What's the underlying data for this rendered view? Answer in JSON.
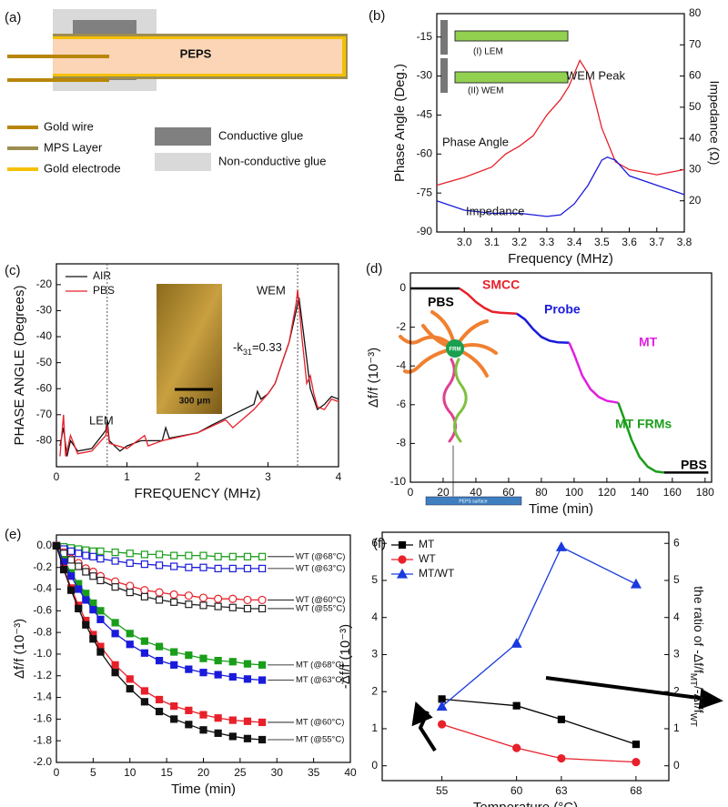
{
  "diagram": {
    "panel_label": "(a)",
    "center_label": "PEPS",
    "legend": [
      "Gold wire",
      "MPS Layer",
      "Gold electrode",
      "Conductive glue",
      "Non-conductive glue"
    ]
  },
  "chart_data": [
    {
      "type": "line",
      "panel_label": "(b)",
      "xlabel": "Frequency (MHz)",
      "ylabel": "Phase Angle (Deg.)",
      "y2label": "Impedance (Ω)",
      "xlim": [
        2.9,
        3.8
      ],
      "xticks": [
        {
          "value": 3,
          "label": "3.0"
        },
        3.1,
        3.2,
        3.3,
        3.4,
        3.5,
        3.6,
        3.7,
        3.8
      ],
      "ylim": [
        -90,
        -6
      ],
      "yticks": [
        -90,
        -75,
        -60,
        -45,
        -30,
        -15
      ],
      "y2lim": [
        10,
        80
      ],
      "y2ticks": [
        20,
        30,
        40,
        50,
        60,
        70,
        80
      ],
      "direct_labels": true,
      "annotations": [
        "WEM Peak",
        "(I) LEM",
        "(II) WEM"
      ],
      "series": [
        {
          "name": "Phase Angle",
          "color": "#e8202a",
          "x": [
            2.9,
            3.0,
            3.1,
            3.15,
            3.2,
            3.25,
            3.3,
            3.35,
            3.38,
            3.42,
            3.45,
            3.5,
            3.55,
            3.6,
            3.7,
            3.8
          ],
          "values": [
            -72,
            -69,
            -65,
            -60,
            -57,
            -53,
            -45,
            -39,
            -34,
            -24,
            -29,
            -50,
            -63,
            -66,
            -68,
            -66
          ]
        },
        {
          "name": "Impedance",
          "color": "#1a1adb",
          "axis": "y2",
          "x": [
            2.9,
            3.0,
            3.1,
            3.2,
            3.3,
            3.35,
            3.4,
            3.45,
            3.5,
            3.52,
            3.55,
            3.6,
            3.7,
            3.8
          ],
          "values": [
            20,
            17,
            16,
            16,
            15,
            15.5,
            19,
            25,
            33,
            34,
            33,
            28,
            25,
            22
          ]
        }
      ]
    },
    {
      "type": "line",
      "panel_label": "(c)",
      "xlabel": "FREQUENCY (MHz)",
      "ylabel": "PHASE ANGLE (Degrees)",
      "xlim": [
        0,
        4
      ],
      "xticks": [
        0,
        1,
        2,
        3,
        4
      ],
      "ylim": [
        -90,
        -12
      ],
      "yticks": [
        -80,
        -70,
        -60,
        -50,
        -40,
        -30,
        -20
      ],
      "legend": "upper left",
      "vlines": [
        0.72,
        3.42
      ],
      "annotations": [
        "WEM",
        "LEM",
        [
          "-k",
          "31",
          "=0.33"
        ],
        "300 μm"
      ],
      "series": [
        {
          "name": "AIR",
          "color": "#111111",
          "x": [
            0.05,
            0.1,
            0.15,
            0.2,
            0.3,
            0.5,
            0.7,
            0.72,
            0.75,
            0.9,
            1.0,
            1.2,
            1.5,
            1.55,
            1.6,
            2.0,
            2.2,
            2.5,
            2.8,
            2.85,
            2.9,
            3.0,
            3.1,
            3.2,
            3.3,
            3.4,
            3.44,
            3.5,
            3.6,
            3.7,
            3.8,
            3.9,
            4.0
          ],
          "values": [
            -82,
            -75,
            -86,
            -80,
            -84,
            -83,
            -76,
            -72,
            -80,
            -84,
            -82,
            -80,
            -80,
            -75,
            -79,
            -77,
            -74,
            -70,
            -66,
            -61,
            -64,
            -62,
            -58,
            -50,
            -42,
            -30,
            -25,
            -38,
            -60,
            -68,
            -66,
            -63,
            -64
          ]
        },
        {
          "name": "PBS",
          "color": "#e8202a",
          "x": [
            0.05,
            0.1,
            0.13,
            0.2,
            0.3,
            0.5,
            0.7,
            0.72,
            0.75,
            1.0,
            1.25,
            1.3,
            1.5,
            2.0,
            2.4,
            2.5,
            2.8,
            3.0,
            3.1,
            3.2,
            3.3,
            3.4,
            3.42,
            3.48,
            3.55,
            3.6,
            3.65,
            3.7,
            3.8,
            3.9,
            4.0
          ],
          "values": [
            -86,
            -70,
            -86,
            -78,
            -85,
            -84,
            -78,
            -74,
            -81,
            -83,
            -78,
            -82,
            -80,
            -77,
            -72,
            -75,
            -68,
            -62,
            -58,
            -50,
            -42,
            -27,
            -22,
            -40,
            -58,
            -55,
            -62,
            -67,
            -68,
            -64,
            -65
          ]
        }
      ]
    },
    {
      "type": "line",
      "panel_label": "(d)",
      "xlabel": "Time (min)",
      "ylabel": "Δf/f (10⁻³)",
      "xlim": [
        0,
        184
      ],
      "xticks": [
        0,
        20,
        40,
        60,
        80,
        100,
        120,
        140,
        160,
        180
      ],
      "ylim": [
        -10,
        0.8
      ],
      "yticks": [
        -10,
        -8,
        -6,
        -4,
        -2,
        0
      ],
      "direct_labels": true,
      "annotations": [
        "FRM",
        "PEPS surface"
      ],
      "series": [
        {
          "name": "PBS",
          "color": "#000000",
          "x": [
            0,
            30
          ],
          "values": [
            0,
            0
          ]
        },
        {
          "name": "SMCC",
          "color": "#e8202a",
          "x": [
            30,
            35,
            40,
            45,
            50,
            55,
            65
          ],
          "values": [
            0,
            -0.3,
            -0.7,
            -1.0,
            -1.2,
            -1.25,
            -1.3
          ]
        },
        {
          "name": "Probe",
          "color": "#1a1adb",
          "x": [
            65,
            70,
            75,
            80,
            85,
            90,
            97
          ],
          "values": [
            -1.3,
            -1.6,
            -2.1,
            -2.5,
            -2.7,
            -2.78,
            -2.8
          ]
        },
        {
          "name": "MT",
          "color": "#e020e0",
          "x": [
            97,
            100,
            105,
            110,
            115,
            120,
            127
          ],
          "values": [
            -2.8,
            -3.4,
            -4.5,
            -5.2,
            -5.6,
            -5.8,
            -5.9
          ]
        },
        {
          "name": "MT FRMs",
          "color": "#1a9e1a",
          "x": [
            127,
            130,
            135,
            140,
            145,
            150,
            155
          ],
          "values": [
            -5.9,
            -6.6,
            -7.8,
            -8.7,
            -9.2,
            -9.45,
            -9.5
          ]
        },
        {
          "name": "PBS",
          "color": "#000000",
          "x": [
            155,
            182
          ],
          "values": [
            -9.5,
            -9.5
          ]
        }
      ]
    },
    {
      "type": "line",
      "panel_label": "(e)",
      "xlabel": "Time (min)",
      "ylabel": "Δf/f (10⁻³)",
      "xlim": [
        0,
        40
      ],
      "xticks": [
        0,
        5,
        10,
        15,
        20,
        25,
        30,
        35,
        40
      ],
      "ylim": [
        -2.0,
        0.1
      ],
      "yticks": [
        {
          "value": -2,
          "label": "-2.0"
        },
        -1.8,
        -1.6,
        -1.4,
        -1.2,
        {
          "value": -1,
          "label": "-1.0"
        },
        -0.8,
        -0.6,
        -0.4,
        -0.2,
        {
          "value": 0,
          "label": "0.0"
        }
      ],
      "direct_labels": true,
      "x": [
        0,
        1,
        2,
        3,
        4,
        5,
        6,
        8,
        10,
        12,
        14,
        16,
        18,
        20,
        22,
        24,
        26,
        28
      ],
      "series": [
        {
          "name": "WT (@68°C)",
          "color": "#1a9e1a",
          "marker": "square",
          "open": true,
          "values": [
            0,
            -0.01,
            -0.02,
            -0.03,
            -0.04,
            -0.05,
            -0.05,
            -0.06,
            -0.07,
            -0.08,
            -0.08,
            -0.09,
            -0.09,
            -0.09,
            -0.1,
            -0.1,
            -0.1,
            -0.1
          ]
        },
        {
          "name": "WT (@63°C)",
          "color": "#1a1adb",
          "marker": "square",
          "open": true,
          "values": [
            0,
            -0.03,
            -0.05,
            -0.07,
            -0.09,
            -0.1,
            -0.12,
            -0.14,
            -0.16,
            -0.17,
            -0.18,
            -0.19,
            -0.2,
            -0.2,
            -0.21,
            -0.21,
            -0.21,
            -0.21
          ]
        },
        {
          "name": "WT (@60°C)",
          "color": "#e8202a",
          "marker": "circle",
          "open": true,
          "values": [
            0,
            -0.06,
            -0.12,
            -0.16,
            -0.21,
            -0.24,
            -0.28,
            -0.33,
            -0.37,
            -0.41,
            -0.43,
            -0.45,
            -0.46,
            -0.48,
            -0.49,
            -0.49,
            -0.5,
            -0.5
          ]
        },
        {
          "name": "WT (@55°C)",
          "color": "#222222",
          "marker": "square",
          "open": true,
          "values": [
            0,
            -0.07,
            -0.13,
            -0.19,
            -0.24,
            -0.28,
            -0.32,
            -0.38,
            -0.43,
            -0.47,
            -0.5,
            -0.52,
            -0.54,
            -0.55,
            -0.56,
            -0.57,
            -0.58,
            -0.58
          ]
        },
        {
          "name": "MT (@68°C)",
          "color": "#1a9e1a",
          "marker": "square",
          "values": [
            0,
            -0.13,
            -0.25,
            -0.35,
            -0.44,
            -0.53,
            -0.6,
            -0.71,
            -0.81,
            -0.88,
            -0.93,
            -0.98,
            -1.01,
            -1.04,
            -1.06,
            -1.07,
            -1.09,
            -1.1
          ]
        },
        {
          "name": "MT (@63°C)",
          "color": "#1a1adb",
          "marker": "square",
          "values": [
            0,
            -0.15,
            -0.28,
            -0.4,
            -0.5,
            -0.59,
            -0.68,
            -0.81,
            -0.91,
            -0.99,
            -1.06,
            -1.1,
            -1.14,
            -1.17,
            -1.19,
            -1.21,
            -1.23,
            -1.24
          ]
        },
        {
          "name": "MT (@60°C)",
          "color": "#e8202a",
          "marker": "square",
          "values": [
            0,
            -0.21,
            -0.39,
            -0.55,
            -0.69,
            -0.82,
            -0.93,
            -1.1,
            -1.23,
            -1.34,
            -1.42,
            -1.48,
            -1.52,
            -1.56,
            -1.59,
            -1.61,
            -1.62,
            -1.63
          ]
        },
        {
          "name": "MT (@55°C)",
          "color": "#111111",
          "marker": "square",
          "values": [
            0,
            -0.22,
            -0.41,
            -0.58,
            -0.73,
            -0.86,
            -0.98,
            -1.17,
            -1.32,
            -1.44,
            -1.53,
            -1.6,
            -1.65,
            -1.7,
            -1.73,
            -1.76,
            -1.78,
            -1.79
          ]
        }
      ]
    },
    {
      "type": "line",
      "panel_label": "(f)",
      "xlabel": "Temperature (°C)",
      "ylabel": "-Δf/f (10⁻³)",
      "y2label": [
        "the ratio of -Δf/f",
        "MT",
        "/-Δf/f",
        "WT"
      ],
      "xlim": [
        51,
        70.2
      ],
      "xticks": [
        55,
        60,
        63,
        68
      ],
      "ylim": [
        -0.4,
        6.3
      ],
      "yticks": [
        0,
        1,
        2,
        3,
        4,
        5,
        6
      ],
      "y2lim": [
        -0.4,
        6.3
      ],
      "y2ticks": [
        0,
        1,
        2,
        3,
        4,
        5,
        6
      ],
      "legend": "upper left",
      "x": [
        55,
        60,
        63,
        68
      ],
      "series": [
        {
          "name": "MT",
          "color": "#000000",
          "marker": "square",
          "values": [
            1.8,
            1.62,
            1.25,
            0.58
          ]
        },
        {
          "name": "WT",
          "color": "#e8202a",
          "marker": "circle",
          "values": [
            1.12,
            0.48,
            0.2,
            0.1
          ]
        },
        {
          "name": "MT/WT",
          "color": "#1a3ae0",
          "marker": "triangle",
          "axis": "y2",
          "values": [
            1.6,
            3.3,
            5.9,
            4.9
          ]
        }
      ]
    }
  ]
}
